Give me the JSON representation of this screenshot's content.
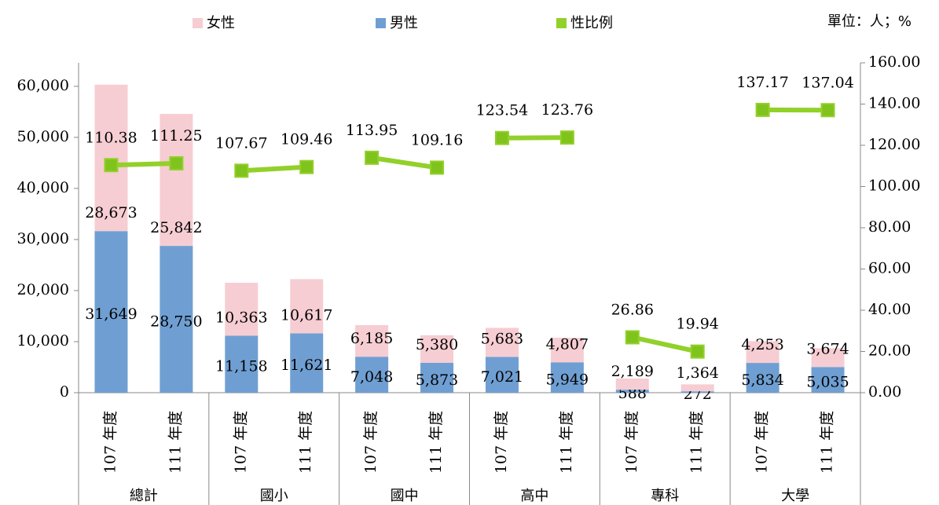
{
  "chart_data": {
    "type": "bar",
    "stacked": true,
    "unit_note": "單位：人；%",
    "categories": [
      "107 年度",
      "111 年度",
      "107 年度",
      "111 年度",
      "107 年度",
      "111 年度",
      "107 年度",
      "111 年度",
      "107 年度",
      "111 年度",
      "107 年度",
      "111 年度"
    ],
    "groups": [
      "總計",
      "國小",
      "國中",
      "高中",
      "專科",
      "大學"
    ],
    "series": [
      {
        "name": "男性",
        "color": "#6f9fd2",
        "values": [
          31649,
          28750,
          11158,
          11621,
          7048,
          5873,
          7021,
          5949,
          588,
          272,
          5834,
          5035
        ],
        "value_labels": [
          "31,649",
          "28,750",
          "11,158",
          "11,621",
          "7,048",
          "5,873",
          "7,021",
          "5,949",
          "588",
          "272",
          "5,834",
          "5,035"
        ]
      },
      {
        "name": "女性",
        "color": "#f6cdd2",
        "values": [
          28673,
          25842,
          10363,
          10617,
          6185,
          5380,
          5683,
          4807,
          2189,
          1364,
          4253,
          3674
        ],
        "value_labels": [
          "28,673",
          "25,842",
          "10,363",
          "10,617",
          "6,185",
          "5,380",
          "5,683",
          "4,807",
          "2,189",
          "1,364",
          "4,253",
          "3,674"
        ]
      },
      {
        "name": "性比例",
        "color": "#92d02a",
        "type": "line",
        "axis": "y2",
        "values": [
          110.38,
          111.25,
          107.67,
          109.46,
          113.95,
          109.16,
          123.54,
          123.76,
          26.86,
          19.94,
          137.17,
          137.04
        ]
      }
    ],
    "ylim": [
      0,
      64600
    ],
    "yticks": [
      0,
      {
        "value": 10000,
        "label": "10,000"
      },
      {
        "value": 20000,
        "label": "20,000"
      },
      {
        "value": 30000,
        "label": "30,000"
      },
      {
        "value": 40000,
        "label": "40,000"
      },
      {
        "value": 50000,
        "label": "50,000"
      },
      {
        "value": 60000,
        "label": "60,000"
      }
    ],
    "y2lim": [
      0,
      160
    ],
    "y2ticks": [
      {
        "value": 0,
        "label": "0.00"
      },
      {
        "value": 20,
        "label": "20.00"
      },
      {
        "value": 40,
        "label": "40.00"
      },
      {
        "value": 60,
        "label": "60.00"
      },
      {
        "value": 80,
        "label": "80.00"
      },
      {
        "value": 100,
        "label": "100.00"
      },
      {
        "value": 120,
        "label": "120.00"
      },
      {
        "value": 140,
        "label": "140.00"
      },
      {
        "value": 160,
        "label": "160.00"
      }
    ]
  }
}
